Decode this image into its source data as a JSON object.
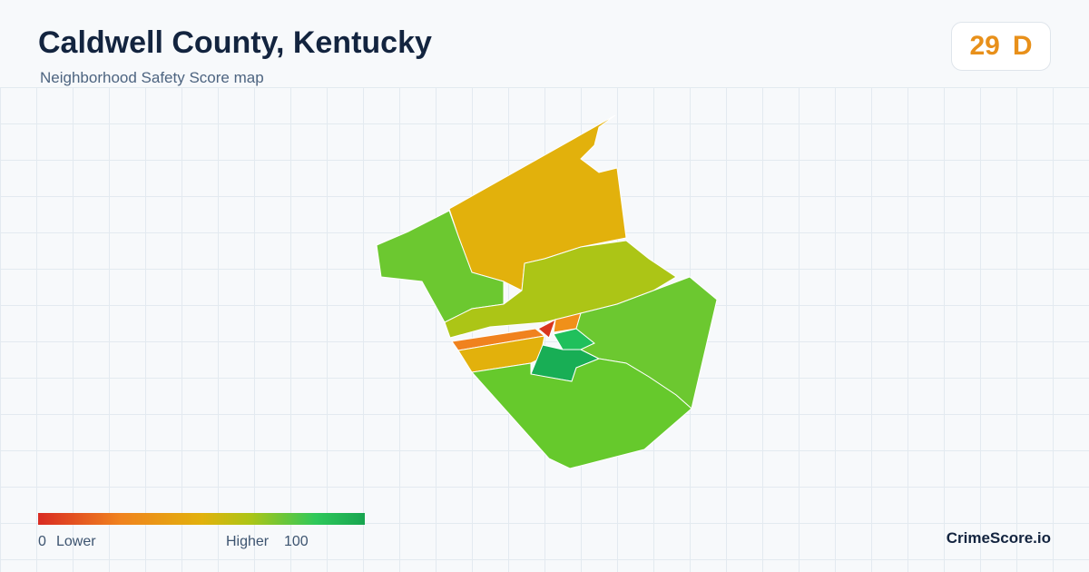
{
  "header": {
    "title": "Caldwell County, Kentucky",
    "subtitle": "Neighborhood Safety Score map"
  },
  "score": {
    "value": 29,
    "grade": "D"
  },
  "legend": {
    "min": 0,
    "min_label": "Lower",
    "max_label": "Higher",
    "max": 100
  },
  "brand": "CrimeScore.io"
}
